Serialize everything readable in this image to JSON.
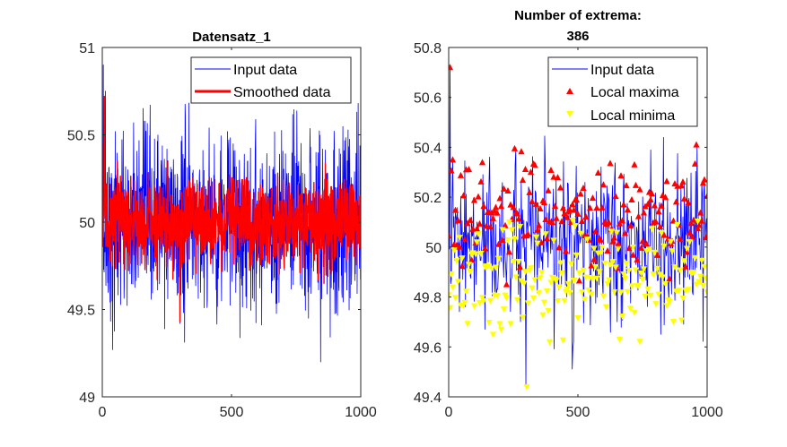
{
  "chart_data": [
    {
      "type": "line",
      "title": "Datensatz_1",
      "xlabel": "",
      "ylabel": "",
      "xlim": [
        0,
        1000
      ],
      "ylim": [
        49,
        51
      ],
      "xticks": [
        "0",
        "500",
        "1000"
      ],
      "yticks": [
        "49",
        "49.5",
        "50",
        "50.5",
        "51"
      ],
      "grid": false,
      "legend_position": "top-right",
      "series": [
        {
          "name": "Input data",
          "color": "#0000ff",
          "style": "thin-line",
          "n_points": 1000,
          "mean": 50.0,
          "noise_sd": 0.25,
          "noise_max": 0.82,
          "start_value": 50.45,
          "peak": [
            [
              4,
              50.9
            ],
            [
              12,
              50.75
            ],
            [
              40,
              49.27
            ],
            [
              300,
              49.42
            ],
            [
              845,
              49.2
            ],
            [
              990,
              50.68
            ]
          ]
        },
        {
          "name": "Smoothed data",
          "color": "#ff0000",
          "style": "thick-line",
          "n_points": 1000,
          "mean": 50.0,
          "noise_sd": 0.12,
          "noise_max": 0.35,
          "start_value": 50.45,
          "peak": [
            [
              8,
              50.72
            ],
            [
              300,
              49.43
            ]
          ]
        }
      ]
    },
    {
      "type": "line",
      "title": "Number of extrema:\n386",
      "title_lines": [
        "Number of extrema:",
        "386"
      ],
      "xlabel": "",
      "ylabel": "",
      "xlim": [
        0,
        1000
      ],
      "ylim": [
        49.4,
        50.8
      ],
      "xticks": [
        "0",
        "500",
        "1000"
      ],
      "yticks": [
        "49.4",
        "49.6",
        "49.8",
        "50",
        "50.2",
        "50.4",
        "50.6",
        "50.8"
      ],
      "grid": false,
      "legend_position": "top-right",
      "extrema_count": 386,
      "series": [
        {
          "name": "Input data",
          "color": "#0000ff",
          "style": "thin-line",
          "n_points": 386,
          "mean": 50.0,
          "noise_sd": 0.15,
          "start_value": 50.05,
          "peak": [
            [
              5,
              50.72
            ],
            [
              15,
              50.35
            ],
            [
              300,
              49.44
            ],
            [
              960,
              50.41
            ],
            [
              990,
              50.27
            ]
          ]
        },
        {
          "name": "Local maxima",
          "color": "#ff0000",
          "marker": "triangle-up",
          "n_points": 193,
          "mean": 50.12,
          "noise_sd": 0.1,
          "peak": [
            [
              5,
              50.72
            ],
            [
              15,
              50.35
            ],
            [
              960,
              50.41
            ],
            [
              990,
              50.27
            ]
          ]
        },
        {
          "name": "Local minima",
          "color": "#ffff00",
          "marker": "triangle-down",
          "n_points": 193,
          "mean": 49.88,
          "noise_sd": 0.1,
          "peak": [
            [
              300,
              49.44
            ],
            [
              170,
              49.65
            ],
            [
              390,
              49.62
            ],
            [
              660,
              49.63
            ]
          ]
        }
      ]
    }
  ]
}
